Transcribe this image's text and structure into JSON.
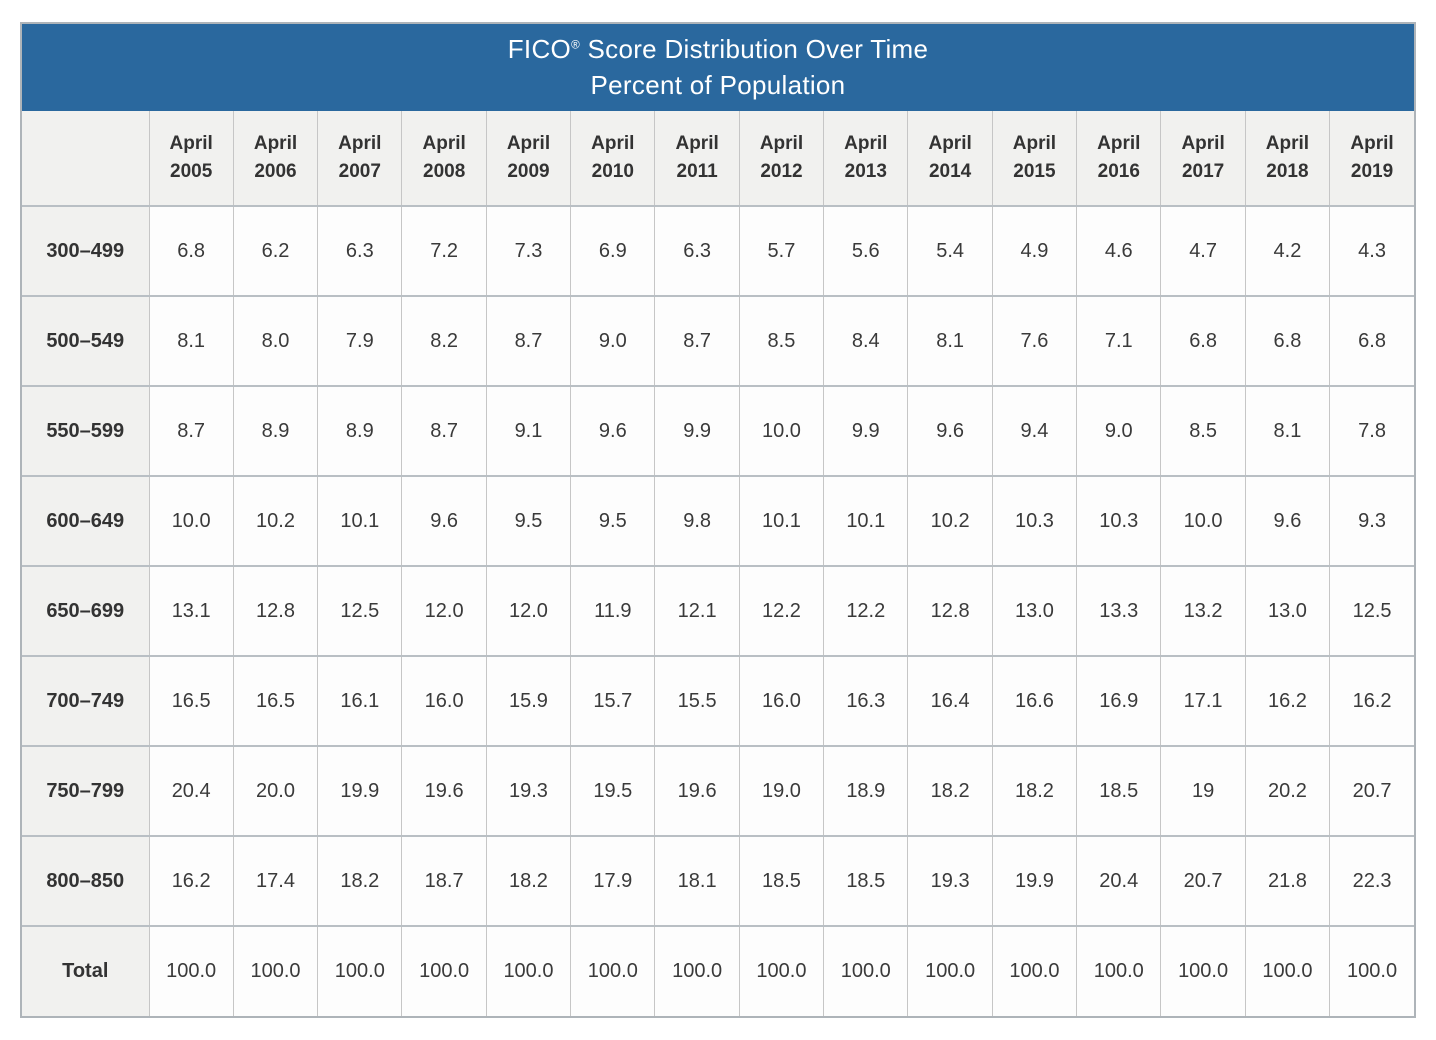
{
  "title": {
    "line1": "FICO® Score Distribution Over Time",
    "line2": "Percent of Population"
  },
  "chart_data": {
    "type": "table",
    "title": "FICO® Score Distribution Over Time",
    "subtitle": "Percent of Population",
    "columns": [
      {
        "month": "April",
        "year": "2005"
      },
      {
        "month": "April",
        "year": "2006"
      },
      {
        "month": "April",
        "year": "2007"
      },
      {
        "month": "April",
        "year": "2008"
      },
      {
        "month": "April",
        "year": "2009"
      },
      {
        "month": "April",
        "year": "2010"
      },
      {
        "month": "April",
        "year": "2011"
      },
      {
        "month": "April",
        "year": "2012"
      },
      {
        "month": "April",
        "year": "2013"
      },
      {
        "month": "April",
        "year": "2014"
      },
      {
        "month": "April",
        "year": "2015"
      },
      {
        "month": "April",
        "year": "2016"
      },
      {
        "month": "April",
        "year": "2017"
      },
      {
        "month": "April",
        "year": "2018"
      },
      {
        "month": "April",
        "year": "2019"
      }
    ],
    "rows": [
      {
        "label": "300–499",
        "values": [
          "6.8",
          "6.2",
          "6.3",
          "7.2",
          "7.3",
          "6.9",
          "6.3",
          "5.7",
          "5.6",
          "5.4",
          "4.9",
          "4.6",
          "4.7",
          "4.2",
          "4.3"
        ]
      },
      {
        "label": "500–549",
        "values": [
          "8.1",
          "8.0",
          "7.9",
          "8.2",
          "8.7",
          "9.0",
          "8.7",
          "8.5",
          "8.4",
          "8.1",
          "7.6",
          "7.1",
          "6.8",
          "6.8",
          "6.8"
        ]
      },
      {
        "label": "550–599",
        "values": [
          "8.7",
          "8.9",
          "8.9",
          "8.7",
          "9.1",
          "9.6",
          "9.9",
          "10.0",
          "9.9",
          "9.6",
          "9.4",
          "9.0",
          "8.5",
          "8.1",
          "7.8"
        ]
      },
      {
        "label": "600–649",
        "values": [
          "10.0",
          "10.2",
          "10.1",
          "9.6",
          "9.5",
          "9.5",
          "9.8",
          "10.1",
          "10.1",
          "10.2",
          "10.3",
          "10.3",
          "10.0",
          "9.6",
          "9.3"
        ]
      },
      {
        "label": "650–699",
        "values": [
          "13.1",
          "12.8",
          "12.5",
          "12.0",
          "12.0",
          "11.9",
          "12.1",
          "12.2",
          "12.2",
          "12.8",
          "13.0",
          "13.3",
          "13.2",
          "13.0",
          "12.5"
        ]
      },
      {
        "label": "700–749",
        "values": [
          "16.5",
          "16.5",
          "16.1",
          "16.0",
          "15.9",
          "15.7",
          "15.5",
          "16.0",
          "16.3",
          "16.4",
          "16.6",
          "16.9",
          "17.1",
          "16.2",
          "16.2"
        ]
      },
      {
        "label": "750–799",
        "values": [
          "20.4",
          "20.0",
          "19.9",
          "19.6",
          "19.3",
          "19.5",
          "19.6",
          "19.0",
          "18.9",
          "18.2",
          "18.2",
          "18.5",
          "19",
          "20.2",
          "20.7"
        ]
      },
      {
        "label": "800–850",
        "values": [
          "16.2",
          "17.4",
          "18.2",
          "18.7",
          "18.2",
          "17.9",
          "18.1",
          "18.5",
          "18.5",
          "19.3",
          "19.9",
          "20.4",
          "20.7",
          "21.8",
          "22.3"
        ]
      },
      {
        "label": "Total",
        "values": [
          "100.0",
          "100.0",
          "100.0",
          "100.0",
          "100.0",
          "100.0",
          "100.0",
          "100.0",
          "100.0",
          "100.0",
          "100.0",
          "100.0",
          "100.0",
          "100.0",
          "100.0"
        ]
      }
    ]
  },
  "colors": {
    "header_bg": "#2a689e",
    "header_text": "#ffffff",
    "label_bg": "#f1f1ef",
    "cell_bg": "#fdfdfd",
    "text": "#3a3a3a",
    "grid": "#c6c6c6",
    "row_divider": "#b9bfc4"
  }
}
